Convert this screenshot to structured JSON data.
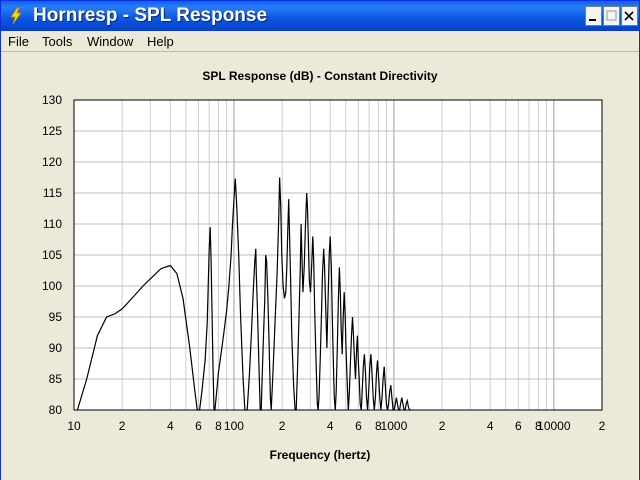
{
  "window": {
    "title": "Hornresp - SPL Response",
    "icon": "lightning-icon",
    "controls": [
      "minimize",
      "maximize",
      "close"
    ]
  },
  "menu": [
    "File",
    "Tools",
    "Window",
    "Help"
  ],
  "chart_data": {
    "type": "line",
    "title": "SPL Response (dB) - Constant Directivity",
    "xlabel": "Frequency (hertz)",
    "ylabel": "",
    "xscale": "log",
    "xlim": [
      10,
      20000
    ],
    "ylim": [
      80,
      130
    ],
    "y_ticks": [
      80,
      85,
      90,
      95,
      100,
      105,
      110,
      115,
      120,
      125,
      130
    ],
    "x_tick_labels": [
      {
        "value": 10,
        "label": "10"
      },
      {
        "value": 20,
        "label": "2"
      },
      {
        "value": 40,
        "label": "4"
      },
      {
        "value": 60,
        "label": "6"
      },
      {
        "value": 80,
        "label": "8"
      },
      {
        "value": 100,
        "label": "100"
      },
      {
        "value": 200,
        "label": "2"
      },
      {
        "value": 400,
        "label": "4"
      },
      {
        "value": 600,
        "label": "6"
      },
      {
        "value": 800,
        "label": "8"
      },
      {
        "value": 1000,
        "label": "1000"
      },
      {
        "value": 2000,
        "label": "2"
      },
      {
        "value": 4000,
        "label": "4"
      },
      {
        "value": 6000,
        "label": "6"
      },
      {
        "value": 8000,
        "label": "8"
      },
      {
        "value": 10000,
        "label": "10000"
      },
      {
        "value": 20000,
        "label": "2"
      }
    ],
    "grid": true,
    "series": [
      {
        "color": "#000000",
        "points": [
          [
            10.5,
            80
          ],
          [
            12,
            85
          ],
          [
            14,
            92
          ],
          [
            16,
            95
          ],
          [
            18,
            95.5
          ],
          [
            20,
            96.3
          ],
          [
            23,
            98
          ],
          [
            27,
            100
          ],
          [
            31,
            101.5
          ],
          [
            35,
            102.8
          ],
          [
            40,
            103.3
          ],
          [
            44,
            102
          ],
          [
            48,
            98
          ],
          [
            53,
            90
          ],
          [
            57,
            83
          ],
          [
            59,
            80
          ],
          [
            61,
            80
          ],
          [
            63,
            83
          ],
          [
            66,
            88
          ],
          [
            68,
            94
          ],
          [
            69,
            100
          ],
          [
            70,
            106
          ],
          [
            71,
            109.5
          ],
          [
            72,
            104
          ],
          [
            73,
            95
          ],
          [
            74,
            87
          ],
          [
            75,
            80
          ],
          [
            76,
            80
          ],
          [
            78,
            83
          ],
          [
            80,
            86
          ],
          [
            83,
            89
          ],
          [
            86,
            92
          ],
          [
            90,
            96
          ],
          [
            93,
            100
          ],
          [
            96,
            105
          ],
          [
            98,
            110
          ],
          [
            100,
            114
          ],
          [
            102,
            117.3
          ],
          [
            104,
            113
          ],
          [
            107,
            105
          ],
          [
            110,
            95
          ],
          [
            114,
            85
          ],
          [
            117,
            80
          ],
          [
            121,
            80
          ],
          [
            125,
            86
          ],
          [
            129,
            93
          ],
          [
            132,
            99
          ],
          [
            135,
            104
          ],
          [
            137,
            106
          ],
          [
            138,
            102
          ],
          [
            140,
            97
          ],
          [
            143,
            88
          ],
          [
            146,
            80
          ],
          [
            148,
            80
          ],
          [
            150,
            85
          ],
          [
            153,
            92
          ],
          [
            156,
            98
          ],
          [
            158,
            105
          ],
          [
            160,
            104
          ],
          [
            163,
            98
          ],
          [
            166,
            90
          ],
          [
            169,
            82
          ],
          [
            171,
            80
          ],
          [
            174,
            84
          ],
          [
            178,
            90
          ],
          [
            182,
            96
          ],
          [
            186,
            102
          ],
          [
            189,
            108
          ],
          [
            191,
            112
          ],
          [
            193,
            117.5
          ],
          [
            196,
            113
          ],
          [
            199,
            105
          ],
          [
            203,
            100
          ],
          [
            207,
            98
          ],
          [
            211,
            99
          ],
          [
            214,
            103
          ],
          [
            217,
            109
          ],
          [
            220,
            114
          ],
          [
            222,
            110
          ],
          [
            226,
            101
          ],
          [
            230,
            92
          ],
          [
            236,
            84
          ],
          [
            241,
            80
          ],
          [
            245,
            80
          ],
          [
            250,
            87
          ],
          [
            255,
            95
          ],
          [
            260,
            103
          ],
          [
            263,
            110
          ],
          [
            266,
            105
          ],
          [
            270,
            99
          ],
          [
            275,
            103
          ],
          [
            280,
            110
          ],
          [
            285,
            115
          ],
          [
            288,
            113
          ],
          [
            292,
            107
          ],
          [
            296,
            101
          ],
          [
            301,
            99
          ],
          [
            306,
            103
          ],
          [
            311,
            108
          ],
          [
            315,
            104
          ],
          [
            320,
            96
          ],
          [
            326,
            88
          ],
          [
            332,
            81
          ],
          [
            336,
            80
          ],
          [
            340,
            82
          ],
          [
            346,
            88
          ],
          [
            352,
            95
          ],
          [
            358,
            102
          ],
          [
            364,
            106
          ],
          [
            369,
            103
          ],
          [
            375,
            96
          ],
          [
            381,
            90
          ],
          [
            388,
            98
          ],
          [
            394,
            105
          ],
          [
            400,
            108
          ],
          [
            406,
            103
          ],
          [
            412,
            95
          ],
          [
            418,
            88
          ],
          [
            424,
            82
          ],
          [
            430,
            80
          ],
          [
            436,
            83
          ],
          [
            443,
            90
          ],
          [
            450,
            98
          ],
          [
            456,
            103
          ],
          [
            462,
            99
          ],
          [
            468,
            93
          ],
          [
            475,
            89
          ],
          [
            482,
            95
          ],
          [
            489,
            99
          ],
          [
            496,
            95
          ],
          [
            503,
            89
          ],
          [
            511,
            84
          ],
          [
            519,
            80
          ],
          [
            527,
            83
          ],
          [
            535,
            88
          ],
          [
            543,
            92
          ],
          [
            551,
            95
          ],
          [
            559,
            92
          ],
          [
            567,
            88
          ],
          [
            575,
            85
          ],
          [
            583,
            89
          ],
          [
            591,
            92
          ],
          [
            599,
            88
          ],
          [
            607,
            85
          ],
          [
            616,
            81
          ],
          [
            625,
            80
          ],
          [
            634,
            83
          ],
          [
            644,
            87
          ],
          [
            654,
            89
          ],
          [
            664,
            86
          ],
          [
            674,
            82
          ],
          [
            685,
            80
          ],
          [
            696,
            83
          ],
          [
            707,
            87
          ],
          [
            718,
            89
          ],
          [
            730,
            86
          ],
          [
            742,
            82
          ],
          [
            754,
            80
          ],
          [
            766,
            82
          ],
          [
            778,
            86
          ],
          [
            790,
            88
          ],
          [
            803,
            85
          ],
          [
            816,
            82
          ],
          [
            829,
            80
          ],
          [
            842,
            82
          ],
          [
            856,
            85
          ],
          [
            870,
            87
          ],
          [
            884,
            84
          ],
          [
            898,
            81
          ],
          [
            912,
            80
          ],
          [
            927,
            81
          ],
          [
            942,
            83
          ],
          [
            957,
            84
          ],
          [
            972,
            82
          ],
          [
            988,
            80
          ],
          [
            1004,
            80
          ],
          [
            1020,
            81
          ],
          [
            1036,
            82
          ],
          [
            1052,
            81
          ],
          [
            1068,
            80
          ],
          [
            1085,
            80
          ],
          [
            1102,
            81
          ],
          [
            1120,
            82
          ],
          [
            1138,
            81
          ],
          [
            1156,
            80
          ],
          [
            1175,
            80
          ],
          [
            1194,
            81
          ],
          [
            1213,
            81.5
          ],
          [
            1232,
            80.5
          ],
          [
            1252,
            80
          ],
          [
            1280,
            80
          ]
        ]
      }
    ]
  }
}
